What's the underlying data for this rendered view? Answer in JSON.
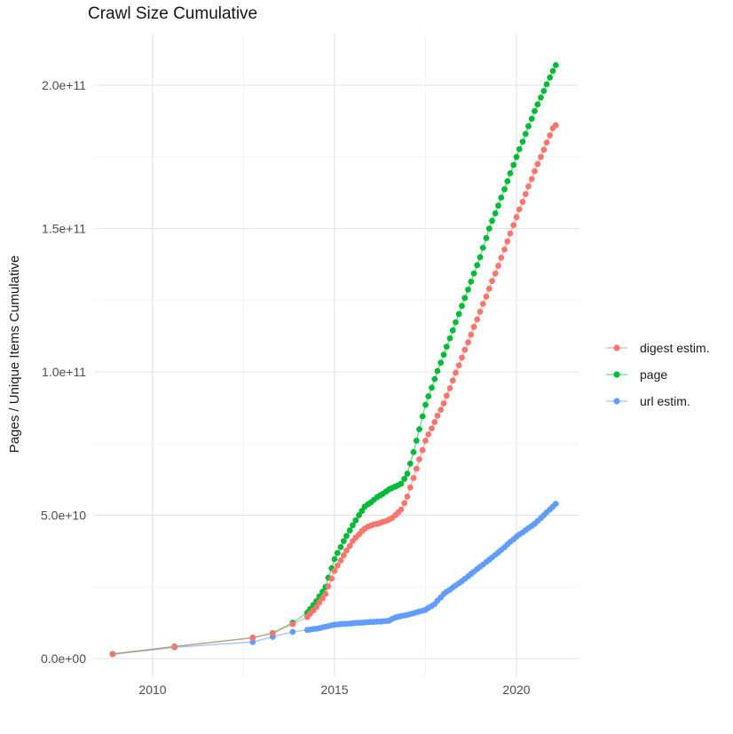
{
  "chart": {
    "title": "Crawl Size Cumulative",
    "ylabel": "Pages / Unique Items Cumulative",
    "xlabel": ""
  },
  "chart_data": {
    "type": "scatter",
    "title": "Crawl Size Cumulative",
    "xlabel": "",
    "ylabel": "Pages / Unique Items Cumulative",
    "note": "values are cumulative counts in billions (1e9); x is decimal year",
    "grid": "on",
    "legend_position": "right",
    "axis_range": {
      "x": [
        2008.4,
        2021.7
      ],
      "y_e9": [
        -10,
        218
      ]
    },
    "x_ticks": {
      "major": [
        2010,
        2015,
        2020
      ],
      "minor": [
        2012.5,
        2017.5
      ],
      "labels": [
        "2010",
        "2015",
        "2020"
      ]
    },
    "y_ticks": {
      "major_e9": [
        0,
        50,
        100,
        150,
        200
      ],
      "minor_e9": [
        25,
        75,
        125,
        175
      ],
      "labels": [
        "0.0e+00",
        "5.0e+10",
        "1.0e+11",
        "1.5e+11",
        "2.0e+11"
      ]
    },
    "x": [
      2008.9,
      2010.6,
      2012.75,
      2013.3,
      2013.85,
      2014.25,
      2014.33,
      2014.42,
      2014.5,
      2014.58,
      2014.67,
      2014.75,
      2014.83,
      2014.92,
      2015.0,
      2015.08,
      2015.17,
      2015.25,
      2015.33,
      2015.42,
      2015.5,
      2015.58,
      2015.67,
      2015.75,
      2015.83,
      2015.92,
      2016.0,
      2016.08,
      2016.17,
      2016.25,
      2016.33,
      2016.42,
      2016.5,
      2016.58,
      2016.67,
      2016.75,
      2016.83,
      2016.92,
      2017.0,
      2017.08,
      2017.17,
      2017.25,
      2017.33,
      2017.42,
      2017.5,
      2017.58,
      2017.67,
      2017.75,
      2017.83,
      2017.92,
      2018.0,
      2018.08,
      2018.17,
      2018.25,
      2018.33,
      2018.42,
      2018.5,
      2018.58,
      2018.67,
      2018.75,
      2018.83,
      2018.92,
      2019.0,
      2019.08,
      2019.17,
      2019.25,
      2019.33,
      2019.42,
      2019.5,
      2019.58,
      2019.67,
      2019.75,
      2019.83,
      2019.92,
      2020.0,
      2020.08,
      2020.17,
      2020.25,
      2020.33,
      2020.42,
      2020.5,
      2020.58,
      2020.67,
      2020.75,
      2020.83,
      2020.92,
      2021.0,
      2021.08
    ],
    "series": [
      {
        "name": "digest estim.",
        "color": "#F8766D",
        "values": [
          1.55,
          4.1,
          7.2,
          8.8,
          12,
          14.5,
          15.7,
          16.8,
          18,
          19.5,
          21,
          22.5,
          25.2,
          27.9,
          30.6,
          32.4,
          34.2,
          36,
          37.7,
          39.3,
          41,
          42.2,
          43.3,
          44.5,
          45.3,
          46,
          46.4,
          46.8,
          47,
          47.3,
          47.7,
          48,
          48.5,
          49,
          50,
          51,
          52,
          54.2,
          56.5,
          59.7,
          63,
          66.2,
          69.5,
          72.7,
          76,
          78.2,
          80.3,
          82.5,
          84.7,
          86.8,
          89,
          91.7,
          94.3,
          97,
          99.7,
          102.3,
          105,
          107.7,
          110.3,
          113,
          115.7,
          118.3,
          121,
          123.7,
          126.3,
          129,
          131.7,
          134.3,
          137,
          139.8,
          142.7,
          145.5,
          148.3,
          151.2,
          154,
          156.7,
          159.3,
          162,
          164.7,
          167.3,
          170,
          172.5,
          175,
          177.5,
          180,
          182.5,
          185,
          186
        ]
      },
      {
        "name": "page",
        "color": "#00BA38",
        "values": [
          1.6,
          4.2,
          7.3,
          8.9,
          12.5,
          16,
          17.3,
          18.7,
          20,
          21.7,
          23.3,
          25,
          28.2,
          31.5,
          34.7,
          36.8,
          38.9,
          41,
          42.8,
          44.7,
          46.5,
          48.2,
          50,
          51.5,
          53,
          53.8,
          54.5,
          55.4,
          56.3,
          56.9,
          57.5,
          58.3,
          59,
          59.5,
          60,
          60.5,
          61,
          62.7,
          64.5,
          68,
          72,
          76,
          80,
          84.5,
          88.5,
          91.5,
          94.5,
          97.5,
          100.3,
          103.2,
          106,
          108.8,
          111.7,
          114.5,
          117.3,
          120.2,
          123,
          125.8,
          128.7,
          131.5,
          134.3,
          137.2,
          140,
          143.3,
          146.7,
          150,
          152.7,
          155.3,
          158,
          160.8,
          163.7,
          166.5,
          169.3,
          172.2,
          175,
          177.7,
          180.3,
          183,
          185.7,
          188.3,
          191,
          193.3,
          195.7,
          198,
          200.3,
          202.7,
          205,
          207
        ]
      },
      {
        "name": "url estim.",
        "color": "#619CFF",
        "values": [
          1.5,
          3.9,
          5.8,
          7.6,
          9.3,
          10,
          10.1,
          10.3,
          10.4,
          10.6,
          10.9,
          11.1,
          11.3,
          11.6,
          11.8,
          11.9,
          12,
          12.1,
          12.1,
          12.2,
          12.3,
          12.4,
          12.5,
          12.5,
          12.6,
          12.7,
          12.8,
          12.8,
          12.9,
          12.9,
          13,
          13.1,
          13.2,
          13.8,
          14.3,
          14.6,
          14.8,
          15,
          15.2,
          15.5,
          15.8,
          16.1,
          16.4,
          16.7,
          17,
          17.7,
          18.3,
          19,
          20.2,
          21.3,
          22.5,
          23.3,
          24,
          24.8,
          25.5,
          26.3,
          27,
          27.8,
          28.7,
          29.5,
          30.3,
          31.2,
          32,
          32.8,
          33.7,
          34.5,
          35.3,
          36.2,
          37,
          37.9,
          38.8,
          39.8,
          40.7,
          41.6,
          42.5,
          43.3,
          44,
          44.8,
          45.5,
          46.3,
          47,
          48,
          49,
          50,
          51,
          52,
          53,
          54
        ]
      }
    ]
  },
  "style": {
    "grid_major_color": "#e3e3e3",
    "grid_minor_color": "#f0f0f0",
    "tick_label_color": "#4d4d4d",
    "background": "#ffffff"
  }
}
